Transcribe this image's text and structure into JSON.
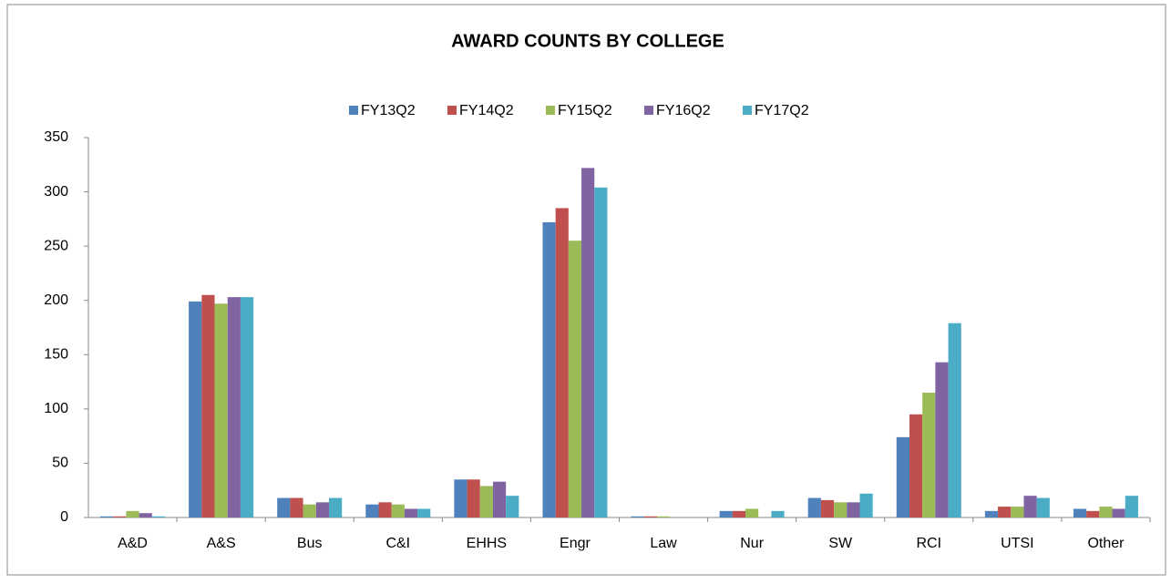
{
  "chart_data": {
    "type": "bar",
    "title": "AWARD COUNTS BY COLLEGE",
    "categories": [
      "A&D",
      "A&S",
      "Bus",
      "C&I",
      "EHHS",
      "Engr",
      "Law",
      "Nur",
      "SW",
      "RCI",
      "UTSI",
      "Other"
    ],
    "series": [
      {
        "name": "FY13Q2",
        "color": "#4f81bd",
        "values": [
          1,
          199,
          18,
          12,
          35,
          272,
          1,
          6,
          18,
          74,
          6,
          8
        ]
      },
      {
        "name": "FY14Q2",
        "color": "#c0504d",
        "values": [
          1,
          205,
          18,
          14,
          35,
          285,
          1,
          6,
          16,
          95,
          10,
          6
        ]
      },
      {
        "name": "FY15Q2",
        "color": "#9bbb59",
        "values": [
          6,
          197,
          12,
          12,
          29,
          255,
          1,
          8,
          14,
          115,
          10,
          10
        ]
      },
      {
        "name": "FY16Q2",
        "color": "#8064a2",
        "values": [
          4,
          203,
          14,
          8,
          33,
          322,
          0,
          0,
          14,
          143,
          20,
          8
        ]
      },
      {
        "name": "FY17Q2",
        "color": "#4bacc6",
        "values": [
          1,
          203,
          18,
          8,
          20,
          304,
          0,
          6,
          22,
          179,
          18,
          20
        ]
      }
    ],
    "ylim": [
      0,
      350
    ],
    "yticks": [
      0,
      50,
      100,
      150,
      200,
      250,
      300,
      350
    ],
    "grid": false,
    "legend": "top"
  }
}
